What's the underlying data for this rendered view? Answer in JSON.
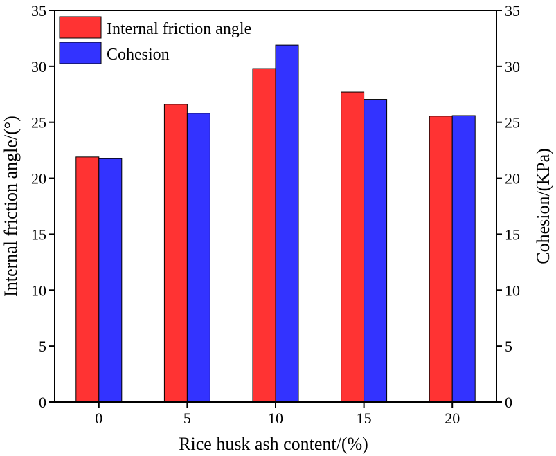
{
  "chart_data": {
    "type": "bar",
    "categories": [
      "0",
      "5",
      "10",
      "15",
      "20"
    ],
    "xlabel": "Rice husk ash content/(%)",
    "ylabel": "Internal friction angle/(°)",
    "y2label": "Cohesion/(KPa)",
    "ylim": [
      0,
      35
    ],
    "y2lim": [
      0,
      35
    ],
    "yticks": [
      "0",
      "5",
      "10",
      "15",
      "20",
      "25",
      "30",
      "35"
    ],
    "grid": false,
    "legend_position": "top-left",
    "series": [
      {
        "name": "Internal friction angle",
        "axis": "left",
        "color": "#ff3333",
        "values": [
          21.9,
          26.6,
          29.8,
          27.7,
          25.55
        ]
      },
      {
        "name": "Cohesion",
        "axis": "right",
        "color": "#3333ff",
        "values": [
          21.75,
          25.8,
          31.9,
          27.05,
          25.6
        ]
      }
    ]
  }
}
